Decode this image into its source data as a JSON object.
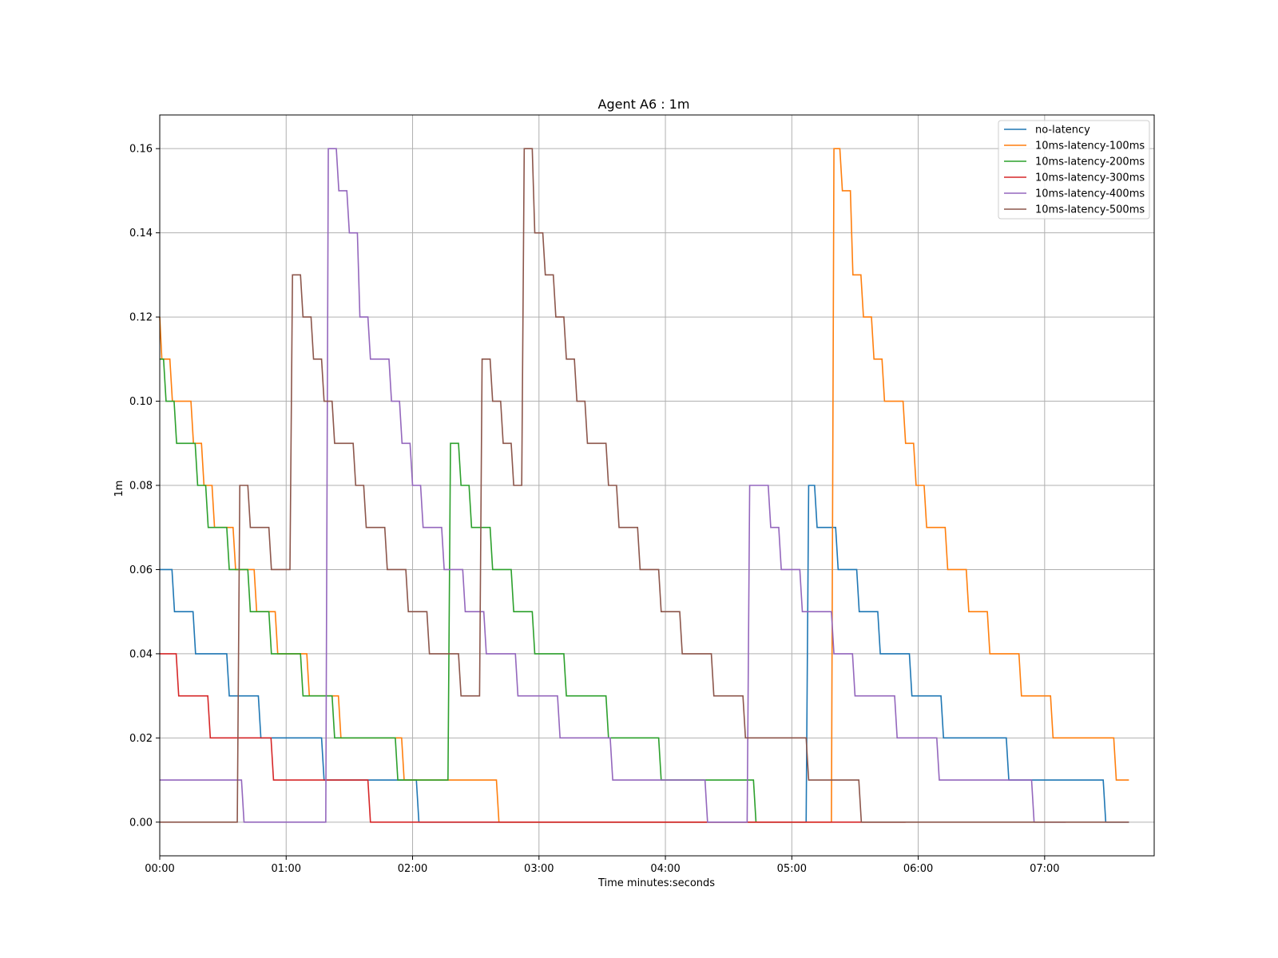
{
  "chart_data": {
    "type": "line",
    "title": "Agent A6 : 1m",
    "xlabel": "Time minutes:seconds",
    "ylabel": "1m",
    "grid": true,
    "legend_position": "top-right",
    "x_unit": "minutes:seconds",
    "xlim": [
      "00:00",
      "07:52"
    ],
    "ylim": [
      -0.008,
      0.168
    ],
    "x_ticks": [
      "00:00",
      "01:00",
      "02:00",
      "03:00",
      "04:00",
      "05:00",
      "06:00",
      "07:00"
    ],
    "y_ticks": [
      "0.00",
      "0.02",
      "0.04",
      "0.06",
      "0.08",
      "0.10",
      "0.12",
      "0.14",
      "0.16"
    ],
    "series": [
      {
        "name": "no-latency",
        "color": "#1f77b4",
        "step_points": [
          [
            "00:00",
            0.06
          ],
          [
            "00:07",
            0.05
          ],
          [
            "00:17",
            0.04
          ],
          [
            "00:33",
            0.03
          ],
          [
            "00:48",
            0.02
          ],
          [
            "01:18",
            0.01
          ],
          [
            "02:03",
            0.0
          ],
          [
            "05:08",
            0.08
          ],
          [
            "05:12",
            0.07
          ],
          [
            "05:22",
            0.06
          ],
          [
            "05:32",
            0.05
          ],
          [
            "05:42",
            0.04
          ],
          [
            "05:57",
            0.03
          ],
          [
            "06:12",
            0.02
          ],
          [
            "06:43",
            0.01
          ],
          [
            "07:29",
            0.0
          ],
          [
            "07:40",
            0.0
          ]
        ]
      },
      {
        "name": "10ms-latency-100ms",
        "color": "#ff7f0e",
        "step_points": [
          [
            "00:00",
            0.12
          ],
          [
            "00:01",
            0.11
          ],
          [
            "00:06",
            0.1
          ],
          [
            "00:16",
            0.09
          ],
          [
            "00:21",
            0.08
          ],
          [
            "00:26",
            0.07
          ],
          [
            "00:36",
            0.06
          ],
          [
            "00:46",
            0.05
          ],
          [
            "00:56",
            0.04
          ],
          [
            "01:11",
            0.03
          ],
          [
            "01:26",
            0.02
          ],
          [
            "01:56",
            0.01
          ],
          [
            "02:41",
            0.0
          ],
          [
            "05:20",
            0.16
          ],
          [
            "05:24",
            0.15
          ],
          [
            "05:29",
            0.13
          ],
          [
            "05:34",
            0.12
          ],
          [
            "05:39",
            0.11
          ],
          [
            "05:44",
            0.1
          ],
          [
            "05:54",
            0.09
          ],
          [
            "05:59",
            0.08
          ],
          [
            "06:04",
            0.07
          ],
          [
            "06:14",
            0.06
          ],
          [
            "06:24",
            0.05
          ],
          [
            "06:34",
            0.04
          ],
          [
            "06:49",
            0.03
          ],
          [
            "07:04",
            0.02
          ],
          [
            "07:34",
            0.01
          ],
          [
            "07:40",
            0.01
          ]
        ]
      },
      {
        "name": "10ms-latency-200ms",
        "color": "#2ca02c",
        "step_points": [
          [
            "00:00",
            0.11
          ],
          [
            "00:03",
            0.1
          ],
          [
            "00:08",
            0.09
          ],
          [
            "00:18",
            0.08
          ],
          [
            "00:23",
            0.07
          ],
          [
            "00:33",
            0.06
          ],
          [
            "00:43",
            0.05
          ],
          [
            "00:53",
            0.04
          ],
          [
            "01:08",
            0.03
          ],
          [
            "01:23",
            0.02
          ],
          [
            "01:53",
            0.01
          ],
          [
            "02:18",
            0.09
          ],
          [
            "02:23",
            0.08
          ],
          [
            "02:28",
            0.07
          ],
          [
            "02:38",
            0.06
          ],
          [
            "02:48",
            0.05
          ],
          [
            "02:58",
            0.04
          ],
          [
            "03:13",
            0.03
          ],
          [
            "03:33",
            0.02
          ],
          [
            "03:58",
            0.01
          ],
          [
            "04:43",
            0.0
          ]
        ]
      },
      {
        "name": "10ms-latency-300ms",
        "color": "#d62728",
        "step_points": [
          [
            "00:00",
            0.04
          ],
          [
            "00:09",
            0.03
          ],
          [
            "00:24",
            0.02
          ],
          [
            "00:54",
            0.01
          ],
          [
            "01:40",
            0.0
          ],
          [
            "05:54",
            0.0
          ]
        ]
      },
      {
        "name": "10ms-latency-400ms",
        "color": "#9467bd",
        "step_points": [
          [
            "00:00",
            0.01
          ],
          [
            "00:40",
            0.0
          ],
          [
            "01:20",
            0.16
          ],
          [
            "01:25",
            0.15
          ],
          [
            "01:30",
            0.14
          ],
          [
            "01:35",
            0.12
          ],
          [
            "01:40",
            0.11
          ],
          [
            "01:50",
            0.1
          ],
          [
            "01:55",
            0.09
          ],
          [
            "02:00",
            0.08
          ],
          [
            "02:05",
            0.07
          ],
          [
            "02:15",
            0.06
          ],
          [
            "02:25",
            0.05
          ],
          [
            "02:35",
            0.04
          ],
          [
            "02:50",
            0.03
          ],
          [
            "03:10",
            0.02
          ],
          [
            "03:35",
            0.01
          ],
          [
            "04:20",
            0.0
          ],
          [
            "04:40",
            0.08
          ],
          [
            "04:50",
            0.07
          ],
          [
            "04:55",
            0.06
          ],
          [
            "05:05",
            0.05
          ],
          [
            "05:20",
            0.04
          ],
          [
            "05:30",
            0.03
          ],
          [
            "05:50",
            0.02
          ],
          [
            "06:10",
            0.01
          ],
          [
            "06:55",
            0.0
          ],
          [
            "07:10",
            0.0
          ]
        ]
      },
      {
        "name": "10ms-latency-500ms",
        "color": "#8c564b",
        "step_points": [
          [
            "00:00",
            0.0
          ],
          [
            "00:38",
            0.08
          ],
          [
            "00:43",
            0.07
          ],
          [
            "00:53",
            0.06
          ],
          [
            "01:03",
            0.13
          ],
          [
            "01:08",
            0.12
          ],
          [
            "01:13",
            0.11
          ],
          [
            "01:18",
            0.1
          ],
          [
            "01:23",
            0.09
          ],
          [
            "01:33",
            0.08
          ],
          [
            "01:38",
            0.07
          ],
          [
            "01:48",
            0.06
          ],
          [
            "01:58",
            0.05
          ],
          [
            "02:08",
            0.04
          ],
          [
            "02:23",
            0.03
          ],
          [
            "02:33",
            0.11
          ],
          [
            "02:38",
            0.1
          ],
          [
            "02:43",
            0.09
          ],
          [
            "02:48",
            0.08
          ],
          [
            "02:53",
            0.16
          ],
          [
            "02:58",
            0.14
          ],
          [
            "03:03",
            0.13
          ],
          [
            "03:08",
            0.12
          ],
          [
            "03:13",
            0.11
          ],
          [
            "03:18",
            0.1
          ],
          [
            "03:23",
            0.09
          ],
          [
            "03:33",
            0.08
          ],
          [
            "03:38",
            0.07
          ],
          [
            "03:48",
            0.06
          ],
          [
            "03:58",
            0.05
          ],
          [
            "04:08",
            0.04
          ],
          [
            "04:23",
            0.03
          ],
          [
            "04:38",
            0.02
          ],
          [
            "05:08",
            0.01
          ],
          [
            "05:33",
            0.0
          ],
          [
            "07:40",
            0.0
          ]
        ]
      }
    ]
  }
}
